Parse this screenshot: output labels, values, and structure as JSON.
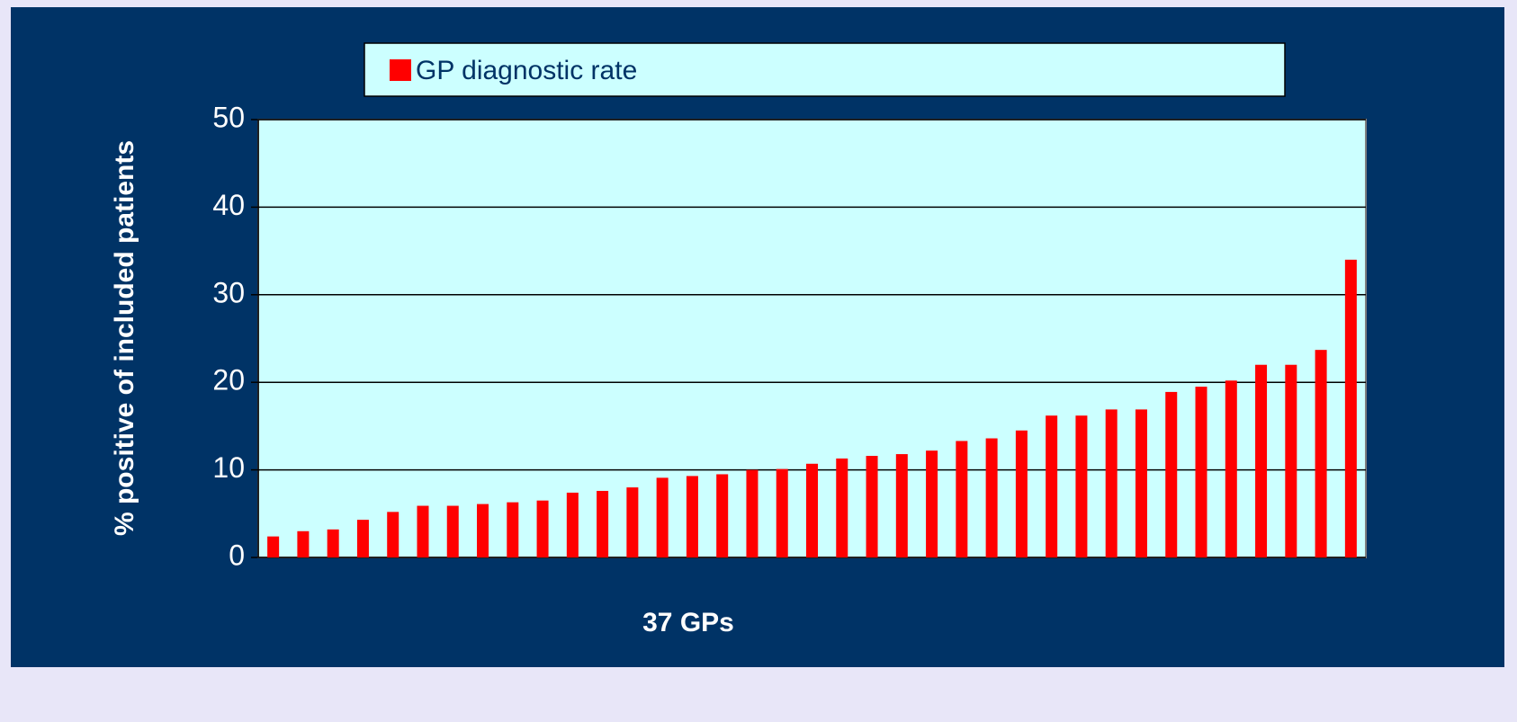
{
  "chart_data": {
    "type": "bar",
    "x_label": "37 GPs",
    "y_label": "% positive of included patients",
    "categories": [
      null,
      null,
      null,
      null,
      null,
      null,
      null,
      null,
      null,
      null,
      null,
      null,
      null,
      null,
      null,
      null,
      null,
      null,
      null,
      null,
      null,
      null,
      null,
      null,
      null,
      null,
      null,
      null,
      null,
      null,
      null,
      null,
      null,
      null,
      null,
      null,
      null
    ],
    "series": [
      {
        "name": "GP diagnostic rate",
        "color": "#ff0000",
        "values": [
          2.4,
          3.0,
          3.2,
          4.3,
          5.2,
          5.9,
          5.9,
          6.1,
          6.3,
          6.5,
          7.4,
          7.6,
          8.0,
          9.1,
          9.3,
          9.5,
          10.0,
          10.1,
          10.7,
          11.3,
          11.6,
          11.8,
          12.2,
          13.3,
          13.6,
          14.5,
          16.2,
          16.2,
          16.9,
          16.9,
          18.9,
          19.5,
          20.2,
          22.0,
          22.0,
          23.7,
          34.0
        ]
      }
    ],
    "ylim": [
      0,
      50
    ],
    "yticks": [
      0,
      10,
      20,
      30,
      40,
      50
    ],
    "grid": true,
    "legend": "top"
  }
}
